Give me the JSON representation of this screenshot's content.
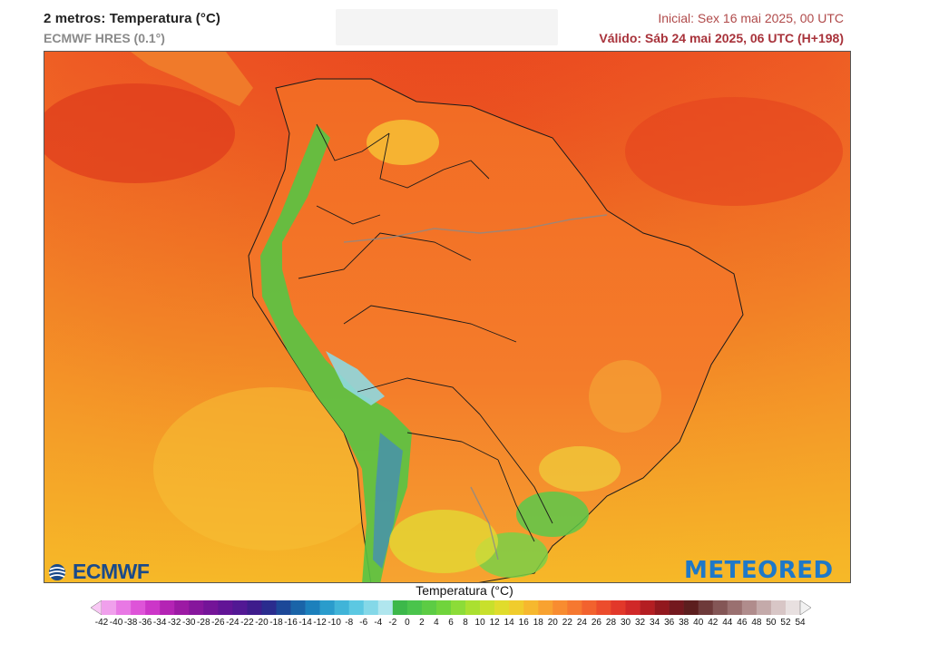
{
  "header": {
    "title": "2 metros: Temperatura (°C)",
    "model": "ECMWF HRES (0.1°)",
    "initial": "Inicial: Sex 16 mai 2025, 00 UTC",
    "valid": "Válido: Sáb 24 mai 2025, 06 UTC (H+198)"
  },
  "logos": {
    "left": "ECMWF",
    "right": "METEORED"
  },
  "legend": {
    "title": "Temperatura (°C)",
    "ticks": [
      "-42",
      "-40",
      "-38",
      "-36",
      "-34",
      "-32",
      "-30",
      "-28",
      "-26",
      "-24",
      "-22",
      "-20",
      "-18",
      "-16",
      "-14",
      "-12",
      "-10",
      "-8",
      "-6",
      "-4",
      "-2",
      "0",
      "2",
      "4",
      "6",
      "8",
      "10",
      "12",
      "14",
      "16",
      "18",
      "20",
      "22",
      "24",
      "26",
      "28",
      "30",
      "32",
      "34",
      "36",
      "38",
      "40",
      "42",
      "44",
      "46",
      "48",
      "50",
      "52",
      "54"
    ],
    "colors": [
      "#f8c8f4",
      "#f0a0ec",
      "#e878e4",
      "#de54d8",
      "#cc36c8",
      "#b424b4",
      "#9c1aa4",
      "#86169c",
      "#741498",
      "#621496",
      "#521894",
      "#3e1c8c",
      "#2a2c8e",
      "#1c4898",
      "#1a64a8",
      "#1c80bc",
      "#2a9ccc",
      "#40b4d8",
      "#5cc8e2",
      "#84d8e8",
      "#b0e6ee",
      "#3cb84a",
      "#4ac44c",
      "#5ccc44",
      "#70d43c",
      "#8cdc38",
      "#aae030",
      "#c8e02c",
      "#e0dc2c",
      "#f0cc2c",
      "#f6b82e",
      "#f8a230",
      "#f88c30",
      "#f67830",
      "#f2622e",
      "#ec4c2c",
      "#e2382a",
      "#d02828",
      "#b41e22",
      "#92181e",
      "#74181e",
      "#5c1e1e",
      "#6e3a3a",
      "#845656",
      "#9a7070",
      "#b08c8c",
      "#c4aaaa",
      "#d8c6c6",
      "#e8e0e0",
      "#f2f2f2"
    ]
  },
  "map": {
    "region": "South America"
  }
}
